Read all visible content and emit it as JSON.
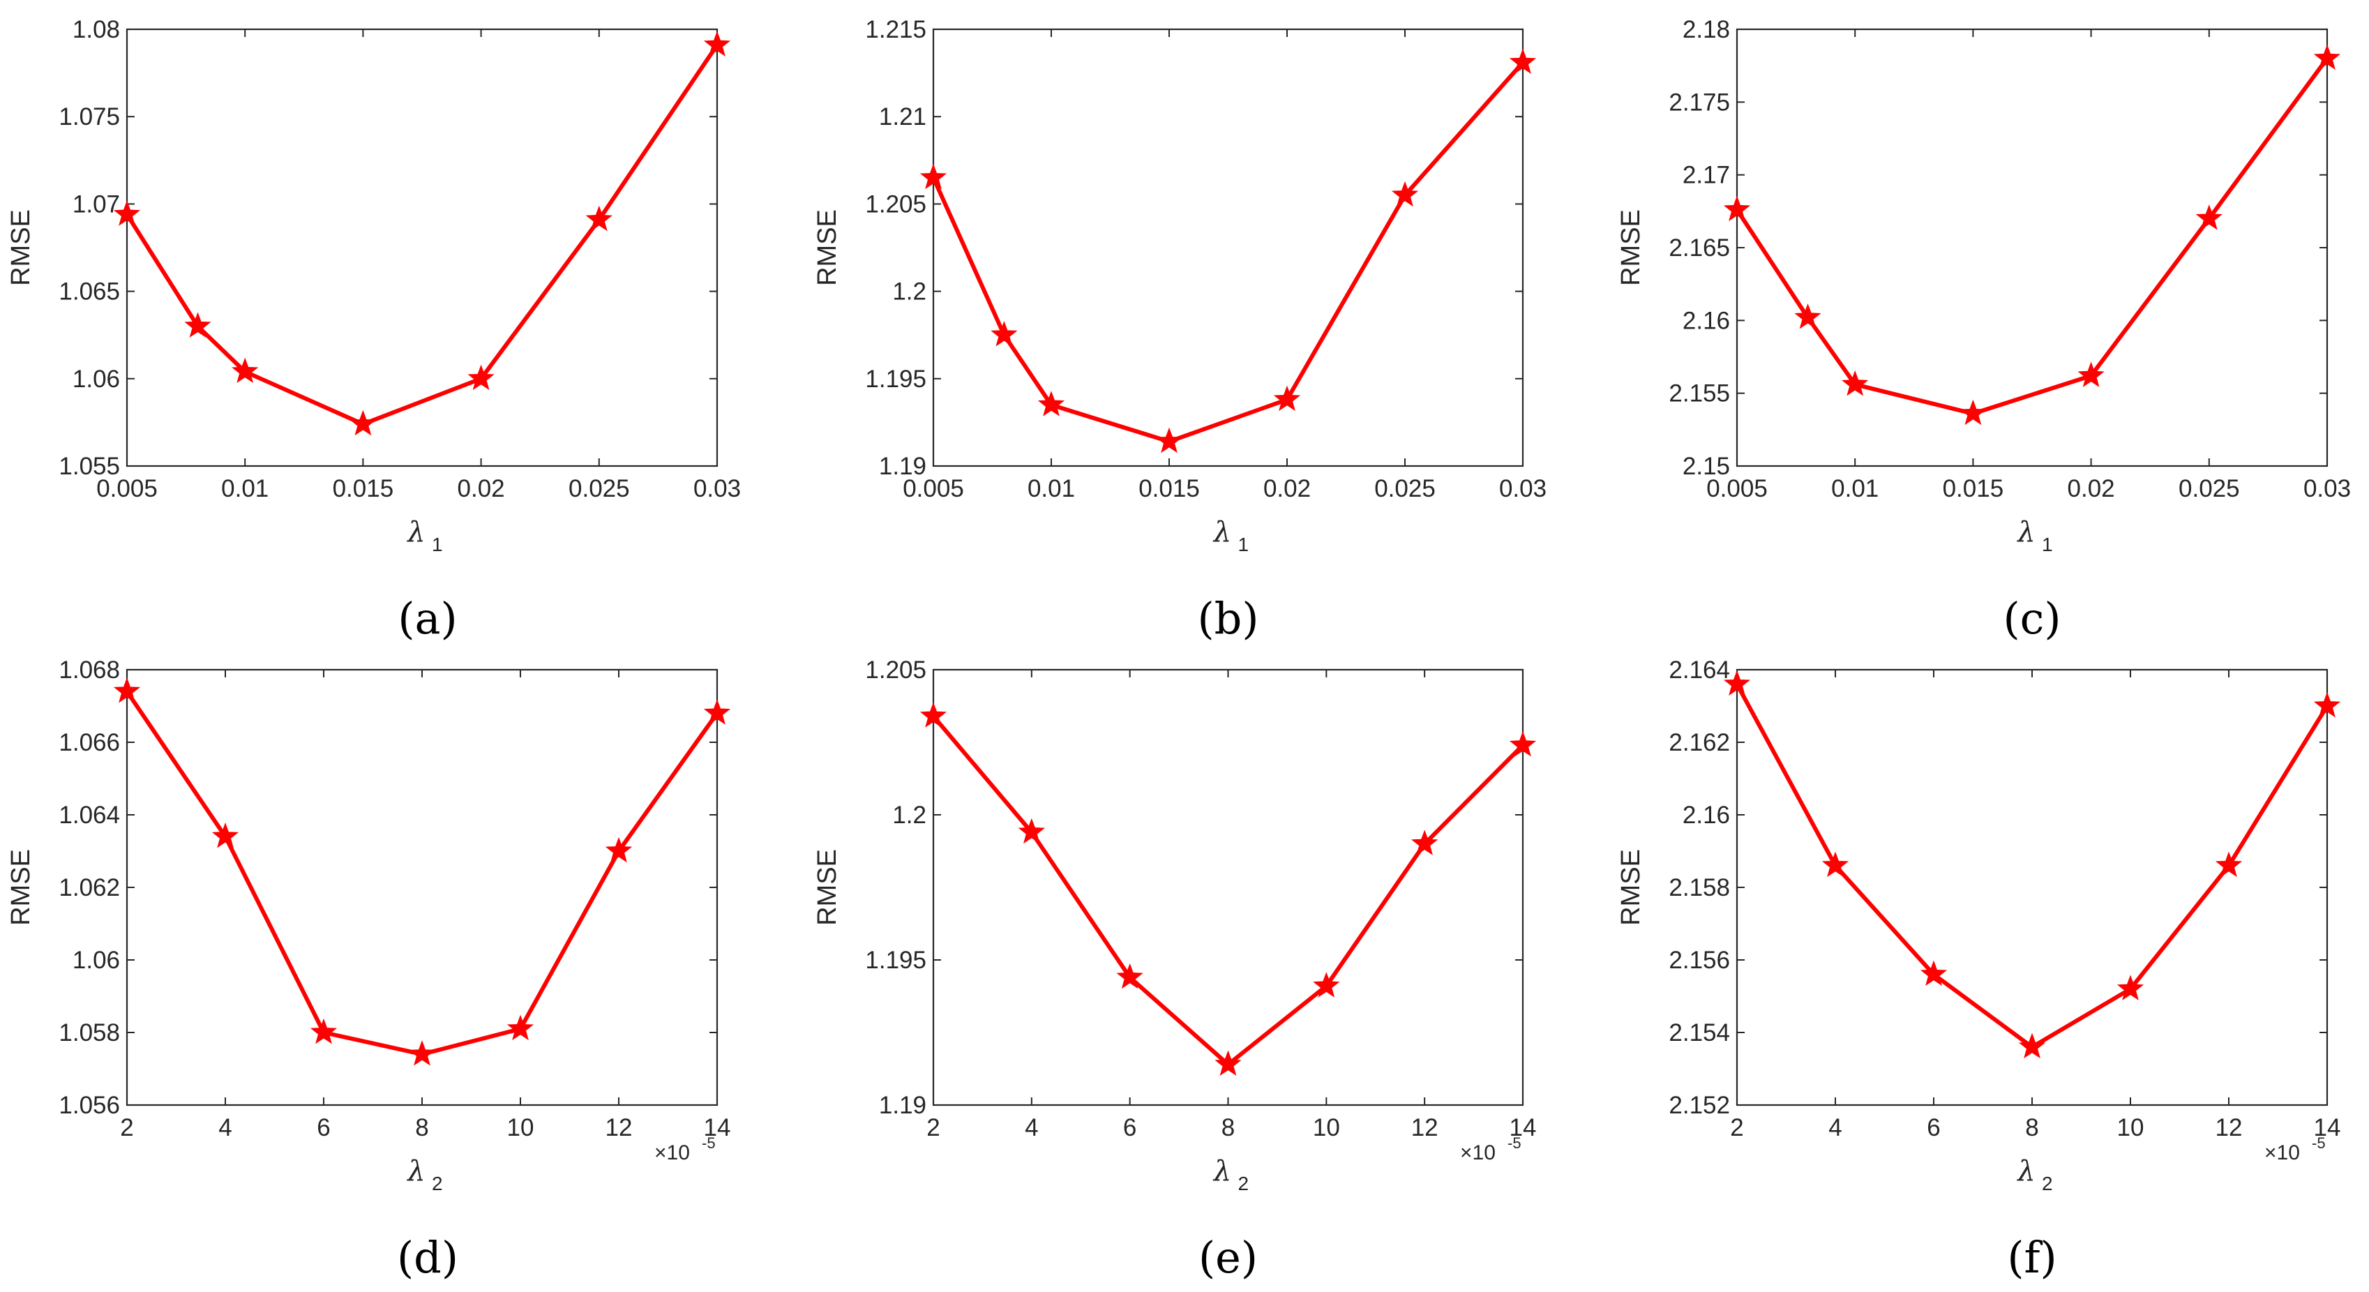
{
  "style": {
    "line_color": "#ff0000",
    "axis_color": "#262626"
  },
  "chart_data": [
    {
      "id": "a",
      "caption": "(a)",
      "type": "line",
      "x": [
        0.005,
        0.008,
        0.01,
        0.015,
        0.02,
        0.025,
        0.03
      ],
      "series": [
        {
          "name": "RMSE",
          "values": [
            1.0694,
            1.063,
            1.0604,
            1.0574,
            1.06,
            1.0691,
            1.0791
          ]
        }
      ],
      "xlabel": "λ",
      "xlabel_sub": "1",
      "ylabel": "RMSE",
      "xlim": [
        0.005,
        0.03
      ],
      "ylim": [
        1.055,
        1.08
      ],
      "xticks": [
        0.005,
        0.01,
        0.015,
        0.02,
        0.025,
        0.03
      ],
      "xtick_labels": [
        "0.005",
        "0.01",
        "0.015",
        "0.02",
        "0.025",
        "0.03"
      ],
      "yticks": [
        1.055,
        1.06,
        1.065,
        1.07,
        1.075,
        1.08
      ],
      "ytick_labels": [
        "1.055",
        "1.06",
        "1.065",
        "1.07",
        "1.075",
        "1.08"
      ],
      "x_exponent": null,
      "marker": "star",
      "grid": false
    },
    {
      "id": "b",
      "caption": "(b)",
      "type": "line",
      "x": [
        0.005,
        0.008,
        0.01,
        0.015,
        0.02,
        0.025,
        0.03
      ],
      "series": [
        {
          "name": "RMSE",
          "values": [
            1.2065,
            1.1975,
            1.1935,
            1.1914,
            1.1938,
            1.2055,
            1.2131
          ]
        }
      ],
      "xlabel": "λ",
      "xlabel_sub": "1",
      "ylabel": "RMSE",
      "xlim": [
        0.005,
        0.03
      ],
      "ylim": [
        1.19,
        1.215
      ],
      "xticks": [
        0.005,
        0.01,
        0.015,
        0.02,
        0.025,
        0.03
      ],
      "xtick_labels": [
        "0.005",
        "0.01",
        "0.015",
        "0.02",
        "0.025",
        "0.03"
      ],
      "yticks": [
        1.19,
        1.195,
        1.2,
        1.205,
        1.21,
        1.215
      ],
      "ytick_labels": [
        "1.19",
        "1.195",
        "1.2",
        "1.205",
        "1.21",
        "1.215"
      ],
      "x_exponent": null,
      "marker": "star",
      "grid": false
    },
    {
      "id": "c",
      "caption": "(c)",
      "type": "line",
      "x": [
        0.005,
        0.008,
        0.01,
        0.015,
        0.02,
        0.025,
        0.03
      ],
      "series": [
        {
          "name": "RMSE",
          "values": [
            2.1676,
            2.1602,
            2.1556,
            2.1536,
            2.1562,
            2.167,
            2.178
          ]
        }
      ],
      "xlabel": "λ",
      "xlabel_sub": "1",
      "ylabel": "RMSE",
      "xlim": [
        0.005,
        0.03
      ],
      "ylim": [
        2.15,
        2.18
      ],
      "xticks": [
        0.005,
        0.01,
        0.015,
        0.02,
        0.025,
        0.03
      ],
      "xtick_labels": [
        "0.005",
        "0.01",
        "0.015",
        "0.02",
        "0.025",
        "0.03"
      ],
      "yticks": [
        2.15,
        2.155,
        2.16,
        2.165,
        2.17,
        2.175,
        2.18
      ],
      "ytick_labels": [
        "2.15",
        "2.155",
        "2.16",
        "2.165",
        "2.17",
        "2.175",
        "2.18"
      ],
      "x_exponent": null,
      "marker": "star",
      "grid": false
    },
    {
      "id": "d",
      "caption": "(d)",
      "type": "line",
      "x": [
        2,
        4,
        6,
        8,
        10,
        12,
        14
      ],
      "series": [
        {
          "name": "RMSE",
          "values": [
            1.0674,
            1.0634,
            1.058,
            1.0574,
            1.0581,
            1.063,
            1.0668
          ]
        }
      ],
      "xlabel": "λ",
      "xlabel_sub": "2",
      "ylabel": "RMSE",
      "xlim": [
        2,
        14
      ],
      "ylim": [
        1.056,
        1.068
      ],
      "xticks": [
        2,
        4,
        6,
        8,
        10,
        12,
        14
      ],
      "xtick_labels": [
        "2",
        "4",
        "6",
        "8",
        "10",
        "12",
        "14"
      ],
      "yticks": [
        1.056,
        1.058,
        1.06,
        1.062,
        1.064,
        1.066,
        1.068
      ],
      "ytick_labels": [
        "1.056",
        "1.058",
        "1.06",
        "1.062",
        "1.064",
        "1.066",
        "1.068"
      ],
      "x_exponent": {
        "base": "×10",
        "power": "-5"
      },
      "marker": "star",
      "grid": false
    },
    {
      "id": "e",
      "caption": "(e)",
      "type": "line",
      "x": [
        2,
        4,
        6,
        8,
        10,
        12,
        14
      ],
      "series": [
        {
          "name": "RMSE",
          "values": [
            1.2034,
            1.1994,
            1.1944,
            1.1914,
            1.1941,
            1.199,
            1.2024
          ]
        }
      ],
      "xlabel": "λ",
      "xlabel_sub": "2",
      "ylabel": "RMSE",
      "xlim": [
        2,
        14
      ],
      "ylim": [
        1.19,
        1.205
      ],
      "xticks": [
        2,
        4,
        6,
        8,
        10,
        12,
        14
      ],
      "xtick_labels": [
        "2",
        "4",
        "6",
        "8",
        "10",
        "12",
        "14"
      ],
      "yticks": [
        1.19,
        1.195,
        1.2,
        1.205
      ],
      "ytick_labels": [
        "1.19",
        "1.195",
        "1.2",
        "1.205"
      ],
      "x_exponent": {
        "base": "×10",
        "power": "-5"
      },
      "marker": "star",
      "grid": false
    },
    {
      "id": "f",
      "caption": "(f)",
      "type": "line",
      "x": [
        2,
        4,
        6,
        8,
        10,
        12,
        14
      ],
      "series": [
        {
          "name": "RMSE",
          "values": [
            2.1636,
            2.1586,
            2.1556,
            2.1536,
            2.1552,
            2.1586,
            2.163
          ]
        }
      ],
      "xlabel": "λ",
      "xlabel_sub": "2",
      "ylabel": "RMSE",
      "xlim": [
        2,
        14
      ],
      "ylim": [
        2.152,
        2.164
      ],
      "xticks": [
        2,
        4,
        6,
        8,
        10,
        12,
        14
      ],
      "xtick_labels": [
        "2",
        "4",
        "6",
        "8",
        "10",
        "12",
        "14"
      ],
      "yticks": [
        2.152,
        2.154,
        2.156,
        2.158,
        2.16,
        2.162,
        2.164
      ],
      "ytick_labels": [
        "2.152",
        "2.154",
        "2.156",
        "2.158",
        "2.16",
        "2.162",
        "2.164"
      ],
      "x_exponent": {
        "base": "×10",
        "power": "-5"
      },
      "marker": "star",
      "grid": false
    }
  ]
}
